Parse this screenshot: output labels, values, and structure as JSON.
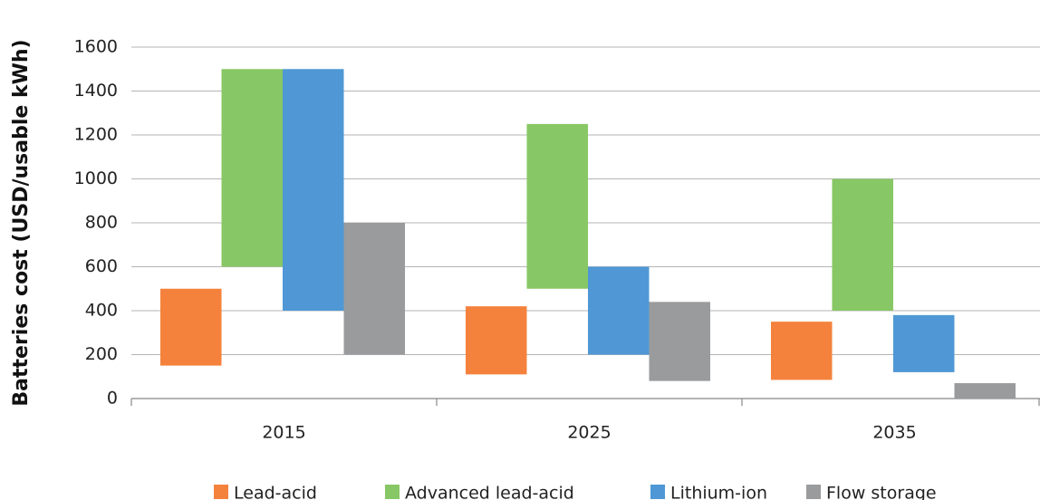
{
  "chart_data": {
    "type": "range-bar",
    "y_label": "Batteries cost (USD/usable kWh)",
    "categories": [
      "2015",
      "2025",
      "2035"
    ],
    "series": [
      {
        "name": "Lead-acid",
        "color": "#f4823c",
        "values": [
          [
            150,
            500
          ],
          [
            110,
            420
          ],
          [
            85,
            350
          ]
        ]
      },
      {
        "name": "Advanced lead-acid",
        "color": "#88c765",
        "values": [
          [
            600,
            1500
          ],
          [
            500,
            1250
          ],
          [
            400,
            1000
          ]
        ]
      },
      {
        "name": "Lithium-ion",
        "color": "#4f98d5",
        "values": [
          [
            400,
            1500
          ],
          [
            200,
            600
          ],
          [
            120,
            380
          ]
        ]
      },
      {
        "name": "Flow storage",
        "color": "#999b9d",
        "values": [
          [
            200,
            800
          ],
          [
            80,
            440
          ],
          [
            0,
            70
          ]
        ]
      }
    ],
    "ylim": [
      0,
      1600
    ],
    "yticks": [
      0,
      200,
      400,
      600,
      800,
      1000,
      1200,
      1400,
      1600
    ],
    "grid": true,
    "legend": "bottom"
  }
}
